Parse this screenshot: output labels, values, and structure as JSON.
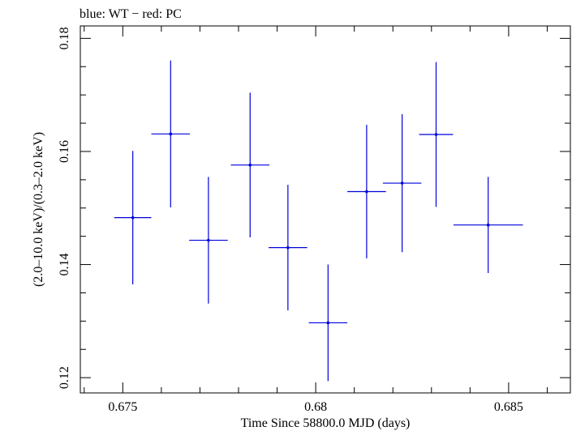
{
  "chart_data": {
    "type": "scatter",
    "title": "blue: WT − red: PC",
    "xlabel": "Time Since 58800.0 MJD (days)",
    "ylabel": "(2.0–10.0 keV)/(0.3–2.0 keV)",
    "xlim": [
      0.6739,
      0.6866
    ],
    "ylim": [
      0.1173,
      0.1822
    ],
    "xticks": [
      {
        "value": 0.675,
        "label": "0.675"
      },
      {
        "value": 0.68,
        "label": "0.68"
      },
      {
        "value": 0.685,
        "label": "0.685"
      }
    ],
    "yticks": [
      {
        "value": 0.12,
        "label": "0.12"
      },
      {
        "value": 0.14,
        "label": "0.14"
      },
      {
        "value": 0.16,
        "label": "0.16"
      },
      {
        "value": 0.18,
        "label": "0.18"
      }
    ],
    "series": [
      {
        "name": "WT",
        "color": "#0000dd",
        "points": [
          {
            "x": 0.67526,
            "xerr": 0.00048,
            "y": 0.1483,
            "yerr": 0.0118
          },
          {
            "x": 0.67624,
            "xerr": 0.0005,
            "y": 0.1631,
            "yerr": 0.013
          },
          {
            "x": 0.67722,
            "xerr": 0.0005,
            "y": 0.1443,
            "yerr": 0.0112
          },
          {
            "x": 0.6783,
            "xerr": 0.0005,
            "y": 0.1576,
            "yerr": 0.0128
          },
          {
            "x": 0.67928,
            "xerr": 0.0005,
            "y": 0.143,
            "yerr": 0.0111
          },
          {
            "x": 0.68032,
            "xerr": 0.0005,
            "y": 0.1297,
            "yerr": 0.0103
          },
          {
            "x": 0.68132,
            "xerr": 0.0005,
            "y": 0.1529,
            "yerr": 0.0118
          },
          {
            "x": 0.68224,
            "xerr": 0.0005,
            "y": 0.1544,
            "yerr": 0.0122
          },
          {
            "x": 0.68312,
            "xerr": 0.00044,
            "y": 0.163,
            "yerr": 0.0128
          },
          {
            "x": 0.68447,
            "xerr": 0.0009,
            "y": 0.147,
            "yerr": 0.0085
          }
        ]
      }
    ]
  }
}
